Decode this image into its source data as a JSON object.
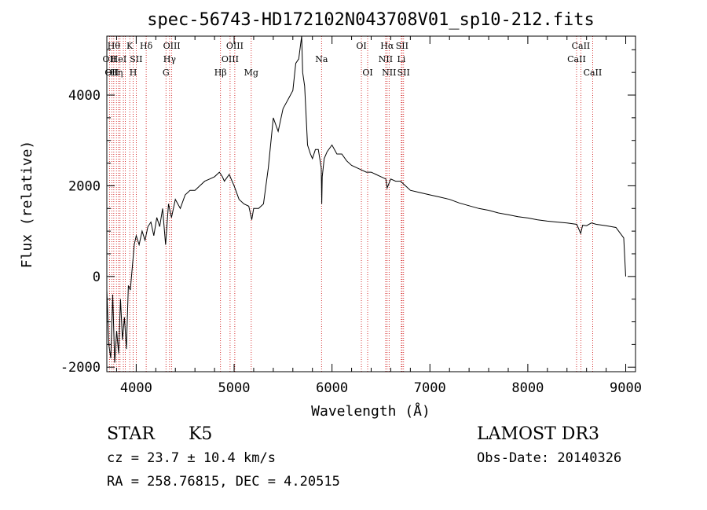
{
  "chart_data": {
    "type": "line",
    "title": "spec-56743-HD172102N043708V01_sp10-212.fits",
    "xlabel": "Wavelength (Å)",
    "ylabel": "Flux (relative)",
    "xlim": [
      3700,
      9100
    ],
    "ylim": [
      -2100,
      5300
    ],
    "xticks": [
      4000,
      5000,
      6000,
      7000,
      8000,
      9000
    ],
    "yticks": [
      -2000,
      0,
      2000,
      4000
    ],
    "grid": false,
    "line_color": "#000000",
    "marker_color": "#cc0000",
    "series": [
      {
        "x": [
          3700,
          3720,
          3740,
          3760,
          3780,
          3800,
          3820,
          3840,
          3860,
          3880,
          3900,
          3920,
          3940,
          3960,
          3980,
          4000,
          4030,
          4060,
          4090,
          4120,
          4150,
          4180,
          4210,
          4240,
          4270,
          4300,
          4330,
          4360,
          4400,
          4450,
          4500,
          4550,
          4600,
          4650,
          4700,
          4750,
          4800,
          4850,
          4880,
          4900,
          4950,
          5000,
          5050,
          5100,
          5150,
          5180,
          5200,
          5250,
          5300,
          5350,
          5400,
          5450,
          5500,
          5550,
          5600,
          5630,
          5660,
          5690,
          5700,
          5720,
          5750,
          5780,
          5800,
          5830,
          5860,
          5890,
          5895,
          5900,
          5920,
          5950,
          6000,
          6050,
          6100,
          6150,
          6200,
          6250,
          6300,
          6350,
          6400,
          6450,
          6500,
          6550,
          6563,
          6600,
          6650,
          6700,
          6750,
          6800,
          6900,
          7000,
          7100,
          7200,
          7300,
          7400,
          7500,
          7600,
          7700,
          7800,
          7900,
          8000,
          8100,
          8200,
          8300,
          8400,
          8500,
          8540,
          8560,
          8600,
          8650,
          8700,
          8800,
          8900,
          8980,
          9000
        ],
        "y": [
          -300,
          -1500,
          -1800,
          -400,
          -1900,
          -1200,
          -1700,
          -500,
          -1400,
          -900,
          -1600,
          -200,
          -300,
          200,
          700,
          900,
          700,
          1000,
          800,
          1100,
          1200,
          900,
          1300,
          1100,
          1500,
          700,
          1600,
          1300,
          1700,
          1500,
          1800,
          1900,
          1900,
          2000,
          2100,
          2150,
          2200,
          2300,
          2200,
          2100,
          2250,
          2000,
          1700,
          1600,
          1550,
          1250,
          1500,
          1500,
          1600,
          2400,
          3500,
          3200,
          3700,
          3900,
          4100,
          4700,
          4800,
          5300,
          4500,
          4200,
          2900,
          2700,
          2600,
          2800,
          2800,
          2400,
          1600,
          2200,
          2600,
          2750,
          2900,
          2700,
          2700,
          2550,
          2450,
          2400,
          2350,
          2300,
          2300,
          2250,
          2200,
          2150,
          1950,
          2150,
          2100,
          2100,
          2000,
          1900,
          1850,
          1800,
          1750,
          1700,
          1620,
          1560,
          1500,
          1460,
          1400,
          1360,
          1320,
          1290,
          1250,
          1220,
          1200,
          1180,
          1150,
          950,
          1130,
          1120,
          1180,
          1150,
          1120,
          1080,
          850,
          0
        ]
      }
    ],
    "line_markers": [
      {
        "x": 3727,
        "label": "OII",
        "row": 1
      },
      {
        "x": 3750,
        "label": "OII",
        "row": 2
      },
      {
        "x": 3771,
        "label": "Hθ",
        "row": 0
      },
      {
        "x": 3798,
        "label": "Hη",
        "row": 2
      },
      {
        "x": 3820,
        "label": "HeI",
        "row": 1
      },
      {
        "x": 3835,
        "label": "",
        "row": 0
      },
      {
        "x": 3869,
        "label": "",
        "row": 0
      },
      {
        "x": 3889,
        "label": "",
        "row": 0
      },
      {
        "x": 3934,
        "label": "K",
        "row": 0
      },
      {
        "x": 3969,
        "label": "H",
        "row": 2
      },
      {
        "x": 4000,
        "label": "SII",
        "row": 1
      },
      {
        "x": 4102,
        "label": "Hδ",
        "row": 0
      },
      {
        "x": 4304,
        "label": "G",
        "row": 2
      },
      {
        "x": 4341,
        "label": "Hγ",
        "row": 1
      },
      {
        "x": 4363,
        "label": "OIII",
        "row": 0
      },
      {
        "x": 4861,
        "label": "Hβ",
        "row": 2
      },
      {
        "x": 4959,
        "label": "OIII",
        "row": 1
      },
      {
        "x": 5007,
        "label": "OIII",
        "row": 0
      },
      {
        "x": 5175,
        "label": "Mg",
        "row": 2
      },
      {
        "x": 5893,
        "label": "Na",
        "row": 1
      },
      {
        "x": 6300,
        "label": "OI",
        "row": 0
      },
      {
        "x": 6364,
        "label": "OI",
        "row": 2
      },
      {
        "x": 6548,
        "label": "NII",
        "row": 1
      },
      {
        "x": 6563,
        "label": "Hα",
        "row": 0
      },
      {
        "x": 6583,
        "label": "NII",
        "row": 2
      },
      {
        "x": 6708,
        "label": "Li",
        "row": 1
      },
      {
        "x": 6716,
        "label": "SII",
        "row": 0
      },
      {
        "x": 6731,
        "label": "SII",
        "row": 2
      },
      {
        "x": 8498,
        "label": "CaII",
        "row": 1
      },
      {
        "x": 8542,
        "label": "CaII",
        "row": 0
      },
      {
        "x": 8662,
        "label": "CaII",
        "row": 2
      }
    ]
  },
  "info": {
    "object_class": "STAR",
    "subclass": "K5",
    "survey": "LAMOST DR3",
    "redshift": "cz = 23.7 ± 10.4 km/s",
    "obs_date": "Obs-Date: 20140326",
    "coords": "RA = 258.76815, DEC =   4.20515"
  }
}
